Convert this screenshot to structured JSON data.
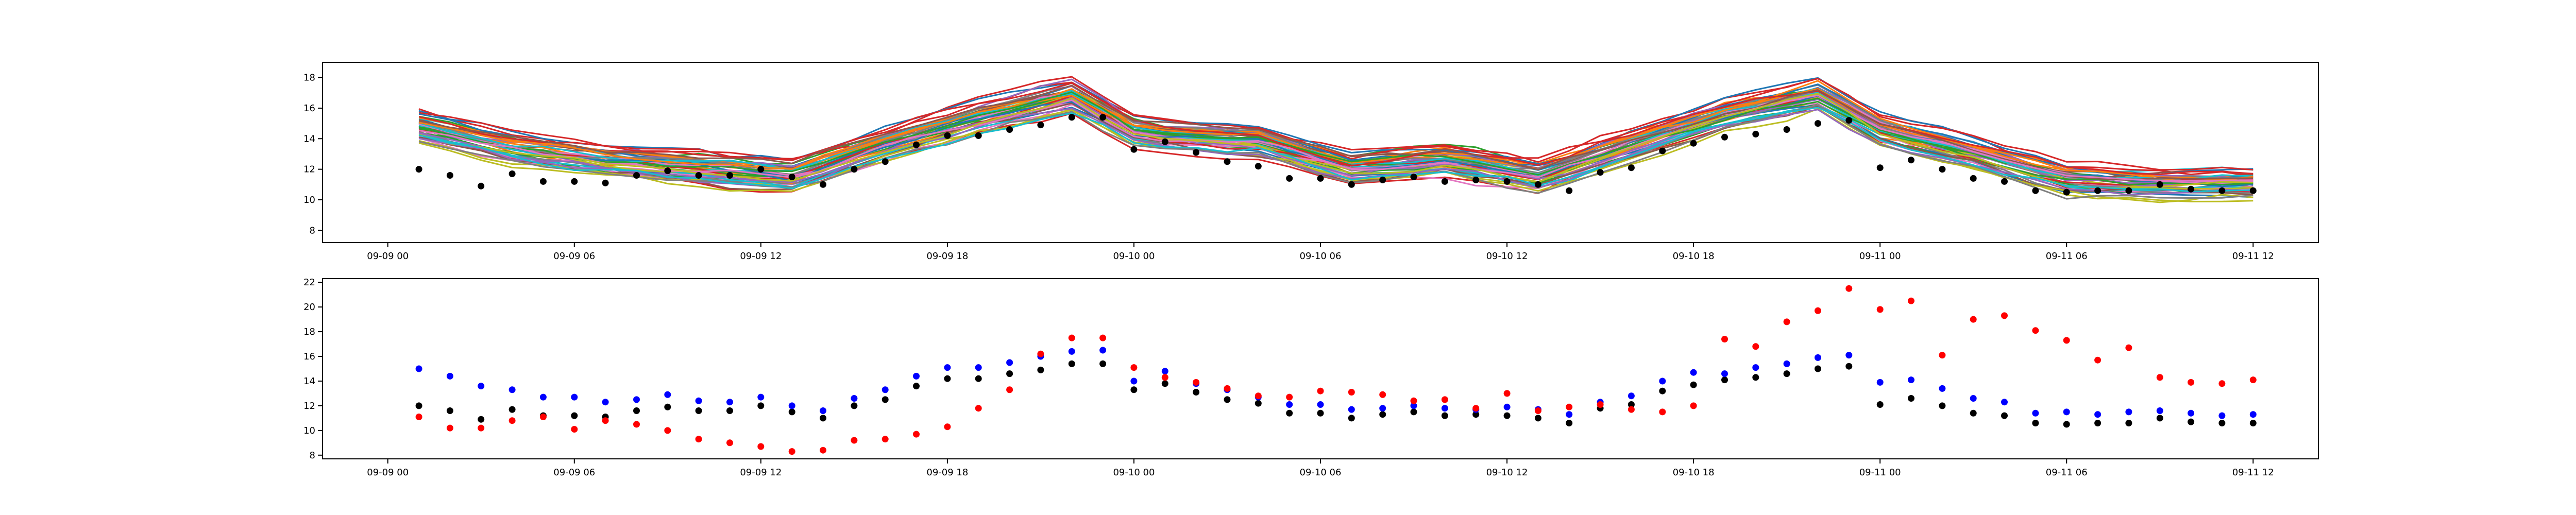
{
  "chart_data": [
    {
      "type": "line",
      "title": "",
      "xlabel": "",
      "ylabel": "",
      "xlim": [
        "2023-09-08T21:54",
        "2023-09-11T14:06"
      ],
      "ylim": [
        7.2,
        19.0
      ],
      "grid": false,
      "legend": "none",
      "x_ticks": [
        {
          "t": "2023-09-09T00:00",
          "label": "09-09 00"
        },
        {
          "t": "2023-09-09T06:00",
          "label": "09-09 06"
        },
        {
          "t": "2023-09-09T12:00",
          "label": "09-09 12"
        },
        {
          "t": "2023-09-09T18:00",
          "label": "09-09 18"
        },
        {
          "t": "2023-09-10T00:00",
          "label": "09-10 00"
        },
        {
          "t": "2023-09-10T06:00",
          "label": "09-10 06"
        },
        {
          "t": "2023-09-10T12:00",
          "label": "09-10 12"
        },
        {
          "t": "2023-09-10T18:00",
          "label": "09-10 18"
        },
        {
          "t": "2023-09-11T00:00",
          "label": "09-11 00"
        },
        {
          "t": "2023-09-11T06:00",
          "label": "09-11 06"
        },
        {
          "t": "2023-09-11T12:00",
          "label": "09-11 12"
        }
      ],
      "y_ticks": [
        8,
        10,
        12,
        14,
        16,
        18
      ],
      "ensemble_members": 50,
      "ensemble_colors": [
        "#1f77b4",
        "#ff7f0e",
        "#2ca02c",
        "#d62728",
        "#9467bd",
        "#8c564b",
        "#e377c2",
        "#7f7f7f",
        "#bcbd22",
        "#17becf"
      ],
      "ensemble_reference": {
        "x": [
          "2023-09-09T01:00",
          "2023-09-09T04:00",
          "2023-09-09T07:00",
          "2023-09-09T10:00",
          "2023-09-09T13:00",
          "2023-09-09T16:00",
          "2023-09-09T19:00",
          "2023-09-09T22:00",
          "2023-09-10T00:00",
          "2023-09-10T01:00",
          "2023-09-10T04:00",
          "2023-09-10T07:00",
          "2023-09-10T10:00",
          "2023-09-10T13:00",
          "2023-09-10T16:00",
          "2023-09-10T19:00",
          "2023-09-10T22:00",
          "2023-09-11T00:00",
          "2023-09-11T03:00",
          "2023-09-11T06:00",
          "2023-09-11T09:00",
          "2023-09-11T12:00"
        ],
        "y": [
          14.8,
          13.4,
          12.6,
          12.1,
          11.6,
          13.6,
          15.4,
          16.9,
          14.6,
          14.3,
          13.9,
          12.1,
          12.6,
          11.6,
          13.6,
          15.6,
          16.9,
          14.6,
          13.1,
          11.4,
          11.1,
          11.1
        ],
        "spread": 1.3
      },
      "series": [
        {
          "color": "#000000",
          "marker": "circle",
          "x": [
            "2023-09-09T01:00",
            "2023-09-09T02:00",
            "2023-09-09T03:00",
            "2023-09-09T04:00",
            "2023-09-09T05:00",
            "2023-09-09T06:00",
            "2023-09-09T07:00",
            "2023-09-09T08:00",
            "2023-09-09T09:00",
            "2023-09-09T10:00",
            "2023-09-09T11:00",
            "2023-09-09T12:00",
            "2023-09-09T13:00",
            "2023-09-09T14:00",
            "2023-09-09T15:00",
            "2023-09-09T16:00",
            "2023-09-09T17:00",
            "2023-09-09T18:00",
            "2023-09-09T19:00",
            "2023-09-09T20:00",
            "2023-09-09T21:00",
            "2023-09-09T22:00",
            "2023-09-09T23:00",
            "2023-09-10T00:00",
            "2023-09-10T01:00",
            "2023-09-10T02:00",
            "2023-09-10T03:00",
            "2023-09-10T04:00",
            "2023-09-10T05:00",
            "2023-09-10T06:00",
            "2023-09-10T07:00",
            "2023-09-10T08:00",
            "2023-09-10T09:00",
            "2023-09-10T10:00",
            "2023-09-10T11:00",
            "2023-09-10T12:00",
            "2023-09-10T13:00",
            "2023-09-10T14:00",
            "2023-09-10T15:00",
            "2023-09-10T16:00",
            "2023-09-10T17:00",
            "2023-09-10T18:00",
            "2023-09-10T19:00",
            "2023-09-10T20:00",
            "2023-09-10T21:00",
            "2023-09-10T22:00",
            "2023-09-10T23:00",
            "2023-09-11T00:00",
            "2023-09-11T01:00",
            "2023-09-11T02:00",
            "2023-09-11T03:00",
            "2023-09-11T04:00",
            "2023-09-11T05:00",
            "2023-09-11T06:00",
            "2023-09-11T07:00",
            "2023-09-11T08:00",
            "2023-09-11T09:00",
            "2023-09-11T10:00",
            "2023-09-11T11:00",
            "2023-09-11T12:00"
          ],
          "y": [
            12.0,
            11.6,
            10.9,
            11.7,
            11.2,
            11.2,
            11.1,
            11.6,
            11.9,
            11.6,
            11.6,
            12.0,
            11.5,
            11.0,
            12.0,
            12.5,
            13.6,
            14.2,
            14.2,
            14.6,
            14.9,
            15.4,
            15.4,
            13.3,
            13.8,
            13.1,
            12.5,
            12.2,
            11.4,
            11.4,
            11.0,
            11.3,
            11.5,
            11.2,
            11.3,
            11.2,
            11.0,
            10.6,
            11.8,
            12.1,
            13.2,
            13.7,
            14.1,
            14.3,
            14.6,
            15.0,
            15.2,
            12.1,
            12.6,
            12.0,
            11.4,
            11.2,
            10.6,
            10.5,
            10.6,
            10.6,
            11.0,
            10.7,
            10.6,
            10.6
          ]
        }
      ]
    },
    {
      "type": "scatter",
      "title": "",
      "xlabel": "",
      "ylabel": "",
      "xlim": [
        "2023-09-08T21:54",
        "2023-09-11T14:06"
      ],
      "ylim": [
        7.7,
        22.3
      ],
      "grid": false,
      "legend": "none",
      "x_ticks": [
        {
          "t": "2023-09-09T00:00",
          "label": "09-09 00"
        },
        {
          "t": "2023-09-09T06:00",
          "label": "09-09 06"
        },
        {
          "t": "2023-09-09T12:00",
          "label": "09-09 12"
        },
        {
          "t": "2023-09-09T18:00",
          "label": "09-09 18"
        },
        {
          "t": "2023-09-10T00:00",
          "label": "09-10 00"
        },
        {
          "t": "2023-09-10T06:00",
          "label": "09-10 06"
        },
        {
          "t": "2023-09-10T12:00",
          "label": "09-10 12"
        },
        {
          "t": "2023-09-10T18:00",
          "label": "09-10 18"
        },
        {
          "t": "2023-09-11T00:00",
          "label": "09-11 00"
        },
        {
          "t": "2023-09-11T06:00",
          "label": "09-11 06"
        },
        {
          "t": "2023-09-11T12:00",
          "label": "09-11 12"
        }
      ],
      "y_ticks": [
        8,
        10,
        12,
        14,
        16,
        18,
        20,
        22
      ],
      "x": [
        "2023-09-09T01:00",
        "2023-09-09T02:00",
        "2023-09-09T03:00",
        "2023-09-09T04:00",
        "2023-09-09T05:00",
        "2023-09-09T06:00",
        "2023-09-09T07:00",
        "2023-09-09T08:00",
        "2023-09-09T09:00",
        "2023-09-09T10:00",
        "2023-09-09T11:00",
        "2023-09-09T12:00",
        "2023-09-09T13:00",
        "2023-09-09T14:00",
        "2023-09-09T15:00",
        "2023-09-09T16:00",
        "2023-09-09T17:00",
        "2023-09-09T18:00",
        "2023-09-09T19:00",
        "2023-09-09T20:00",
        "2023-09-09T21:00",
        "2023-09-09T22:00",
        "2023-09-09T23:00",
        "2023-09-10T00:00",
        "2023-09-10T01:00",
        "2023-09-10T02:00",
        "2023-09-10T03:00",
        "2023-09-10T04:00",
        "2023-09-10T05:00",
        "2023-09-10T06:00",
        "2023-09-10T07:00",
        "2023-09-10T08:00",
        "2023-09-10T09:00",
        "2023-09-10T10:00",
        "2023-09-10T11:00",
        "2023-09-10T12:00",
        "2023-09-10T13:00",
        "2023-09-10T14:00",
        "2023-09-10T15:00",
        "2023-09-10T16:00",
        "2023-09-10T17:00",
        "2023-09-10T18:00",
        "2023-09-10T19:00",
        "2023-09-10T20:00",
        "2023-09-10T21:00",
        "2023-09-10T22:00",
        "2023-09-10T23:00",
        "2023-09-11T00:00",
        "2023-09-11T01:00",
        "2023-09-11T02:00",
        "2023-09-11T03:00",
        "2023-09-11T04:00",
        "2023-09-11T05:00",
        "2023-09-11T06:00",
        "2023-09-11T07:00",
        "2023-09-11T08:00",
        "2023-09-11T09:00",
        "2023-09-11T10:00",
        "2023-09-11T11:00",
        "2023-09-11T12:00"
      ],
      "series": [
        {
          "color": "#000000",
          "y": [
            12.0,
            11.6,
            10.9,
            11.7,
            11.2,
            11.2,
            11.1,
            11.6,
            11.9,
            11.6,
            11.6,
            12.0,
            11.5,
            11.0,
            12.0,
            12.5,
            13.6,
            14.2,
            14.2,
            14.6,
            14.9,
            15.4,
            15.4,
            13.3,
            13.8,
            13.1,
            12.5,
            12.2,
            11.4,
            11.4,
            11.0,
            11.3,
            11.5,
            11.2,
            11.3,
            11.2,
            11.0,
            10.6,
            11.8,
            12.1,
            13.2,
            13.7,
            14.1,
            14.3,
            14.6,
            15.0,
            15.2,
            12.1,
            12.6,
            12.0,
            11.4,
            11.2,
            10.6,
            10.5,
            10.6,
            10.6,
            11.0,
            10.7,
            10.6,
            10.6
          ]
        },
        {
          "color": "#0000ff",
          "y": [
            15.0,
            14.4,
            13.6,
            13.3,
            12.7,
            12.7,
            12.3,
            12.5,
            12.9,
            12.4,
            12.3,
            12.7,
            12.0,
            11.6,
            12.6,
            13.3,
            14.4,
            15.1,
            15.1,
            15.5,
            16.0,
            16.4,
            16.5,
            14.0,
            14.8,
            13.8,
            13.3,
            12.7,
            12.1,
            12.1,
            11.7,
            11.8,
            12.0,
            11.8,
            11.7,
            11.9,
            11.7,
            11.3,
            12.3,
            12.8,
            14.0,
            14.7,
            14.6,
            15.1,
            15.4,
            15.9,
            16.1,
            13.9,
            14.1,
            13.4,
            12.6,
            12.3,
            11.4,
            11.5,
            11.3,
            11.5,
            11.6,
            11.4,
            11.2,
            11.3
          ]
        },
        {
          "color": "#ff0000",
          "y": [
            11.1,
            10.2,
            10.2,
            10.8,
            11.1,
            10.1,
            10.8,
            10.5,
            10.0,
            9.3,
            9.0,
            8.7,
            8.3,
            8.4,
            9.2,
            9.3,
            9.7,
            10.3,
            11.8,
            13.3,
            16.2,
            17.5,
            17.5,
            15.1,
            14.3,
            13.9,
            13.4,
            12.8,
            12.7,
            13.2,
            13.1,
            12.9,
            12.4,
            12.5,
            11.8,
            13.0,
            11.6,
            11.9,
            12.1,
            11.7,
            11.5,
            12.0,
            17.4,
            16.8,
            18.8,
            19.7,
            21.5,
            19.8,
            20.5,
            16.1,
            19.0,
            19.3,
            18.1,
            17.3,
            15.7,
            16.7,
            14.3,
            13.9,
            13.8,
            14.1
          ]
        }
      ]
    }
  ]
}
